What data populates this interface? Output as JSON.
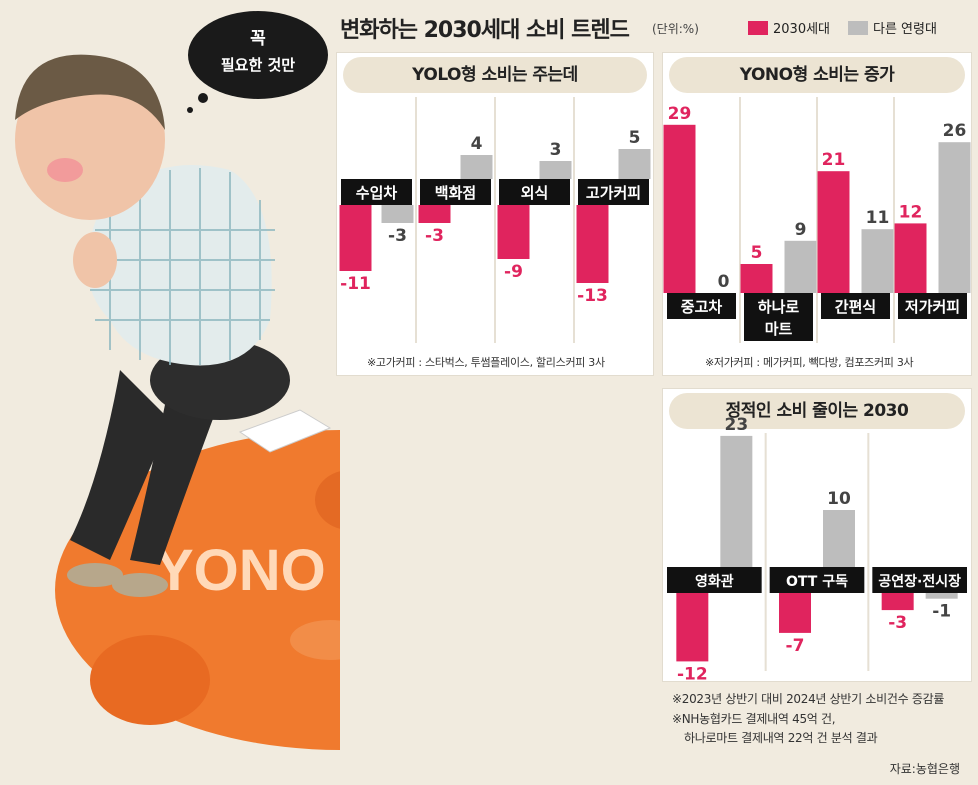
{
  "header": {
    "title": "변화하는 2030세대 소비 트렌드",
    "unit": "(단위:%)",
    "legend": [
      {
        "label": "2030세대",
        "color": "#e0245e"
      },
      {
        "label": "다른 연령대",
        "color": "#bdbdbd"
      }
    ]
  },
  "illustration": {
    "bubble_line1": "꼭",
    "bubble_line2": "필요한 것만",
    "piggy_text": "YONO"
  },
  "chart_data": [
    {
      "type": "bar",
      "title": "YOLO형 소비는 주는데",
      "categories": [
        "수입차",
        "백화점",
        "외식",
        "고가커피"
      ],
      "series": [
        {
          "name": "2030세대",
          "values": [
            -11,
            -3,
            -9,
            -13
          ]
        },
        {
          "name": "다른 연령대",
          "values": [
            -3,
            4,
            3,
            5
          ]
        }
      ],
      "footnote": "※고가커피 : 스타벅스, 투썸플레이스, 할리스커피 3사"
    },
    {
      "type": "bar",
      "title": "YONO형 소비는 증가",
      "categories": [
        "중고차",
        "하나로\n마트",
        "간편식",
        "저가커피"
      ],
      "series": [
        {
          "name": "2030세대",
          "values": [
            29,
            5,
            21,
            12
          ]
        },
        {
          "name": "다른 연령대",
          "values": [
            0,
            9,
            11,
            26
          ]
        }
      ],
      "footnote": "※저가커피 : 메가커피, 빽다방, 컴포즈커피 3사"
    },
    {
      "type": "bar",
      "title": "정적인 소비 줄이는 2030",
      "categories": [
        "영화관",
        "OTT 구독",
        "공연장·전시장"
      ],
      "series": [
        {
          "name": "2030세대",
          "values": [
            -12,
            -7,
            -3
          ]
        },
        {
          "name": "다른 연령대",
          "values": [
            23,
            10,
            -1
          ]
        }
      ]
    }
  ],
  "footnotes": {
    "line1": "※2023년 상반기 대비 2024년 상반기 소비건수 증감률",
    "line2": "※NH농협카드 결제내역 45억 건,",
    "line3": "하나로마트 결제내역 22억 건 분석 결과",
    "source": "자료:농협은행"
  }
}
